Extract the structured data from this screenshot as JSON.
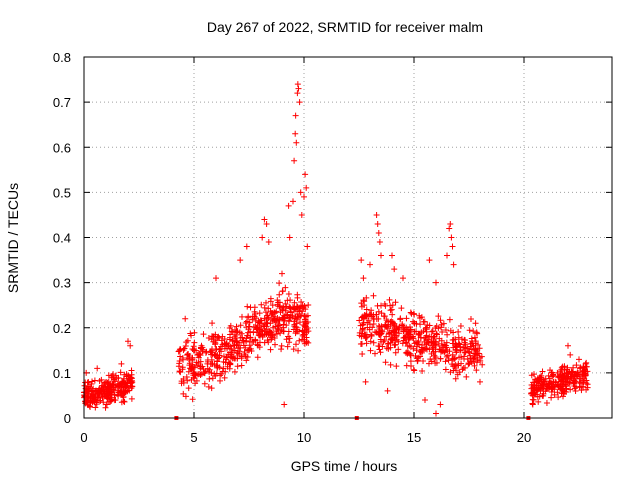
{
  "chart_data": {
    "type": "scatter",
    "title": "Day 267 of 2022, SRMTID for receiver malm",
    "xlabel": "GPS time / hours",
    "ylabel": "SRMTID / TECUs",
    "xlim": [
      0,
      24
    ],
    "ylim": [
      0,
      0.8
    ],
    "x_ticks": [
      0,
      5,
      10,
      15,
      20
    ],
    "x_tick_labels": [
      "0",
      "5",
      "10",
      "15",
      "20"
    ],
    "y_ticks": [
      0,
      0.1,
      0.2,
      0.3,
      0.4,
      0.5,
      0.6,
      0.7,
      0.8
    ],
    "y_tick_labels": [
      "0",
      "0.1",
      "0.2",
      "0.3",
      "0.4",
      "0.5",
      "0.6",
      "0.7",
      "0.8"
    ],
    "grid": true,
    "marker": "+",
    "color": "#ff0000",
    "gap_markers_x": [
      4.2,
      12.4,
      20.2
    ],
    "segments": [
      {
        "x_start": 0.0,
        "x_end": 2.2,
        "base": [
          0.05,
          0.05,
          0.06,
          0.07,
          0.08
        ],
        "spread": 0.025,
        "n": 260
      },
      {
        "x_start": 4.3,
        "x_end": 10.2,
        "base": [
          0.12,
          0.12,
          0.14,
          0.17,
          0.2,
          0.23,
          0.2
        ],
        "spread": 0.05,
        "n": 560
      },
      {
        "x_start": 12.5,
        "x_end": 18.1,
        "base": [
          0.22,
          0.2,
          0.19,
          0.17,
          0.16,
          0.15,
          0.14
        ],
        "spread": 0.05,
        "n": 480
      },
      {
        "x_start": 20.3,
        "x_end": 22.9,
        "base": [
          0.06,
          0.07,
          0.08,
          0.09,
          0.09
        ],
        "spread": 0.025,
        "n": 260
      }
    ],
    "highlights": [
      {
        "x": 0.1,
        "y": 0.1
      },
      {
        "x": 0.6,
        "y": 0.11
      },
      {
        "x": 1.7,
        "y": 0.12
      },
      {
        "x": 2.0,
        "y": 0.17
      },
      {
        "x": 2.1,
        "y": 0.16
      },
      {
        "x": 4.6,
        "y": 0.22
      },
      {
        "x": 6.0,
        "y": 0.31
      },
      {
        "x": 7.1,
        "y": 0.35
      },
      {
        "x": 7.4,
        "y": 0.38
      },
      {
        "x": 8.1,
        "y": 0.4
      },
      {
        "x": 8.2,
        "y": 0.44
      },
      {
        "x": 8.3,
        "y": 0.43
      },
      {
        "x": 8.4,
        "y": 0.39
      },
      {
        "x": 9.0,
        "y": 0.32
      },
      {
        "x": 9.3,
        "y": 0.47
      },
      {
        "x": 9.35,
        "y": 0.4
      },
      {
        "x": 9.5,
        "y": 0.48
      },
      {
        "x": 9.55,
        "y": 0.57
      },
      {
        "x": 9.6,
        "y": 0.63
      },
      {
        "x": 9.62,
        "y": 0.67
      },
      {
        "x": 9.65,
        "y": 0.61
      },
      {
        "x": 9.7,
        "y": 0.72
      },
      {
        "x": 9.72,
        "y": 0.74
      },
      {
        "x": 9.75,
        "y": 0.73
      },
      {
        "x": 9.8,
        "y": 0.7
      },
      {
        "x": 9.85,
        "y": 0.5
      },
      {
        "x": 9.9,
        "y": 0.45
      },
      {
        "x": 10.0,
        "y": 0.49
      },
      {
        "x": 10.05,
        "y": 0.54
      },
      {
        "x": 10.1,
        "y": 0.51
      },
      {
        "x": 10.15,
        "y": 0.38
      },
      {
        "x": 9.1,
        "y": 0.03
      },
      {
        "x": 12.6,
        "y": 0.35
      },
      {
        "x": 12.7,
        "y": 0.31
      },
      {
        "x": 13.0,
        "y": 0.34
      },
      {
        "x": 13.3,
        "y": 0.45
      },
      {
        "x": 13.35,
        "y": 0.43
      },
      {
        "x": 13.4,
        "y": 0.41
      },
      {
        "x": 13.45,
        "y": 0.39
      },
      {
        "x": 13.5,
        "y": 0.36
      },
      {
        "x": 14.0,
        "y": 0.36
      },
      {
        "x": 14.1,
        "y": 0.33
      },
      {
        "x": 14.5,
        "y": 0.31
      },
      {
        "x": 15.7,
        "y": 0.35
      },
      {
        "x": 16.0,
        "y": 0.3
      },
      {
        "x": 16.5,
        "y": 0.36
      },
      {
        "x": 16.6,
        "y": 0.42
      },
      {
        "x": 16.65,
        "y": 0.43
      },
      {
        "x": 16.7,
        "y": 0.4
      },
      {
        "x": 16.75,
        "y": 0.38
      },
      {
        "x": 16.8,
        "y": 0.34
      },
      {
        "x": 13.8,
        "y": 0.06
      },
      {
        "x": 15.5,
        "y": 0.04
      },
      {
        "x": 16.0,
        "y": 0.01
      },
      {
        "x": 16.2,
        "y": 0.03
      },
      {
        "x": 12.8,
        "y": 0.08
      },
      {
        "x": 18.0,
        "y": 0.08
      },
      {
        "x": 17.8,
        "y": 0.21
      },
      {
        "x": 20.4,
        "y": 0.03
      },
      {
        "x": 20.6,
        "y": 0.06
      },
      {
        "x": 22.0,
        "y": 0.16
      },
      {
        "x": 22.1,
        "y": 0.14
      },
      {
        "x": 22.5,
        "y": 0.13
      },
      {
        "x": 22.8,
        "y": 0.12
      }
    ]
  }
}
